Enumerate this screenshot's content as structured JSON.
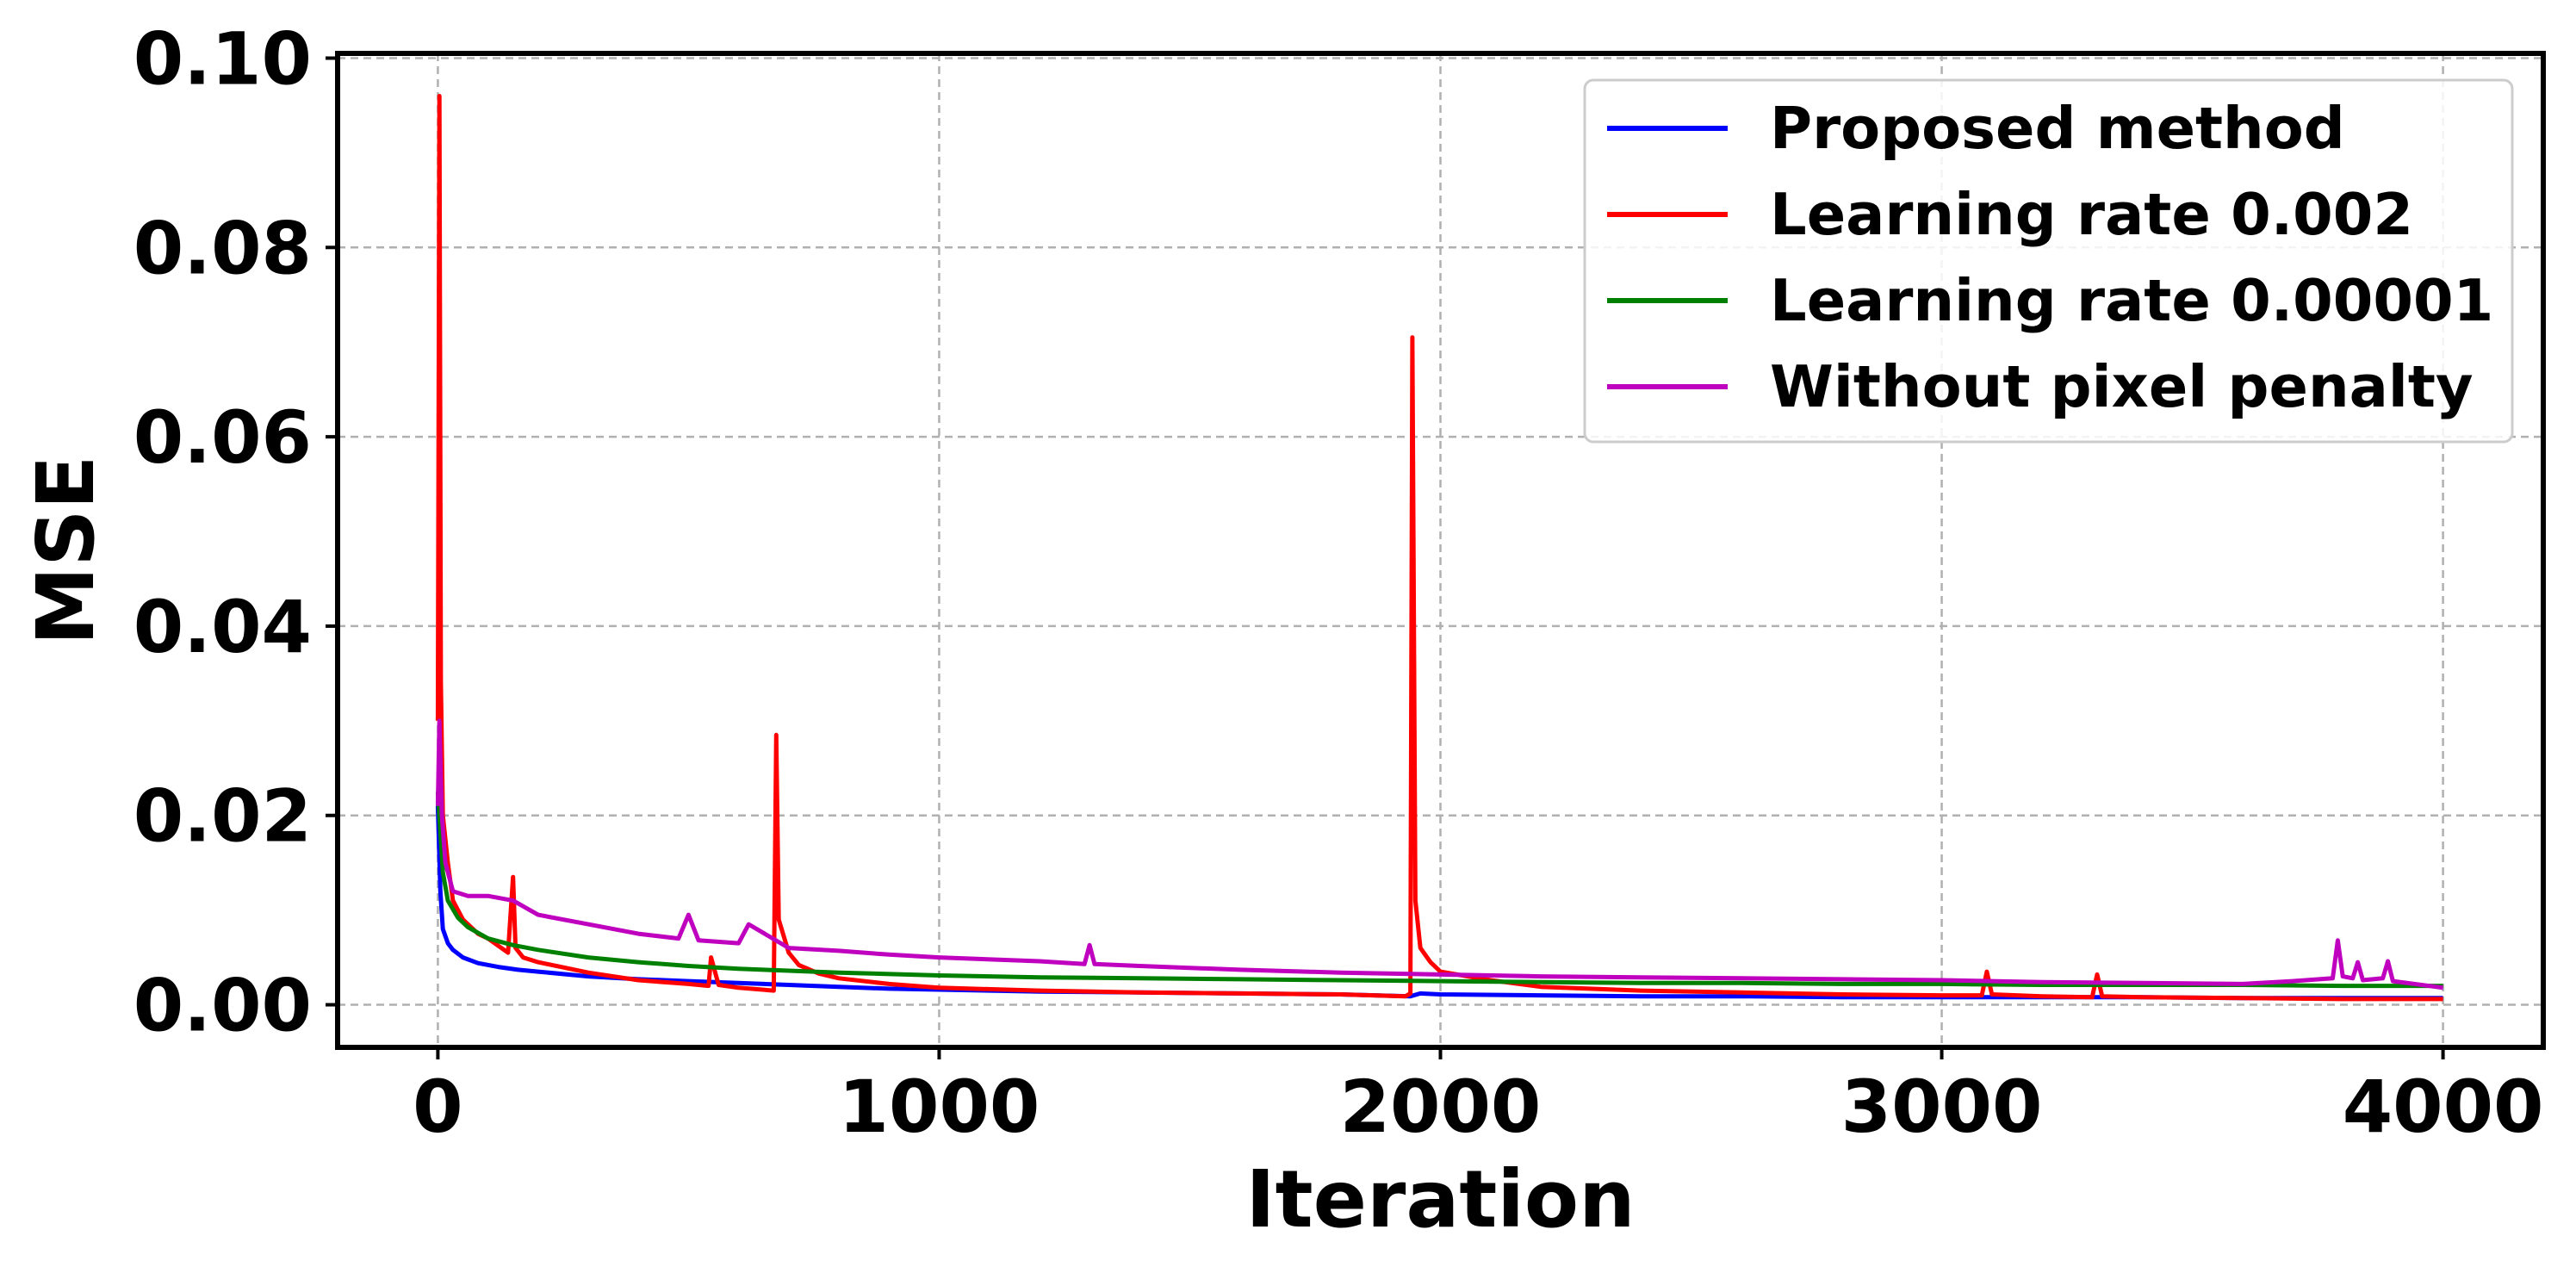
{
  "chart_data": {
    "type": "line",
    "title": "",
    "xlabel": "Iteration",
    "ylabel": "MSE",
    "xlim": [
      -200,
      4200
    ],
    "ylim": [
      -0.0045,
      0.1005
    ],
    "xticks": [
      0,
      1000,
      2000,
      3000,
      4000
    ],
    "xtick_labels": [
      "0",
      "1000",
      "2000",
      "3000",
      "4000"
    ],
    "yticks": [
      0.0,
      0.02,
      0.04,
      0.06,
      0.08,
      0.1
    ],
    "ytick_labels": [
      "0.00",
      "0.02",
      "0.04",
      "0.06",
      "0.08",
      "0.10"
    ],
    "grid": true,
    "legend_position": "top-right",
    "series": [
      {
        "name": "Proposed method",
        "color": "#0000ff",
        "x": [
          0,
          5,
          10,
          20,
          30,
          50,
          80,
          120,
          160,
          200,
          300,
          400,
          500,
          600,
          700,
          800,
          900,
          1000,
          1200,
          1400,
          1600,
          1800,
          1940,
          1960,
          2000,
          2200,
          2400,
          2600,
          2800,
          3000,
          3200,
          3400,
          3600,
          3800,
          4000
        ],
        "y": [
          0.021,
          0.012,
          0.008,
          0.0065,
          0.0058,
          0.005,
          0.0044,
          0.004,
          0.0037,
          0.0035,
          0.003,
          0.0027,
          0.0025,
          0.0023,
          0.0021,
          0.0019,
          0.0017,
          0.0016,
          0.0014,
          0.0013,
          0.0012,
          0.0011,
          0.0009,
          0.0012,
          0.0011,
          0.001,
          0.0009,
          0.0009,
          0.0008,
          0.0008,
          0.0008,
          0.0008,
          0.0007,
          0.0007,
          0.0007
        ]
      },
      {
        "name": "Learning rate 0.002",
        "color": "#ff0000",
        "x": [
          0,
          3,
          6,
          10,
          20,
          30,
          50,
          80,
          100,
          140,
          150,
          155,
          170,
          200,
          300,
          400,
          500,
          540,
          545,
          560,
          600,
          670,
          675,
          680,
          700,
          720,
          760,
          800,
          900,
          1000,
          1200,
          1400,
          1600,
          1800,
          1930,
          1940,
          1944,
          1950,
          1960,
          1980,
          2000,
          2100,
          2200,
          2400,
          2600,
          2800,
          3000,
          3080,
          3090,
          3100,
          3200,
          3300,
          3310,
          3320,
          3400,
          3600,
          3800,
          4000
        ],
        "y": [
          0.03,
          0.096,
          0.034,
          0.02,
          0.015,
          0.011,
          0.009,
          0.0075,
          0.007,
          0.0055,
          0.0135,
          0.006,
          0.005,
          0.0045,
          0.0034,
          0.0026,
          0.0022,
          0.002,
          0.005,
          0.0021,
          0.0018,
          0.0015,
          0.0285,
          0.009,
          0.0055,
          0.0042,
          0.0033,
          0.0028,
          0.0022,
          0.0018,
          0.0015,
          0.0013,
          0.0012,
          0.0011,
          0.0009,
          0.0012,
          0.0705,
          0.011,
          0.006,
          0.0045,
          0.0035,
          0.0026,
          0.0019,
          0.0015,
          0.0013,
          0.0011,
          0.001,
          0.001,
          0.0035,
          0.0011,
          0.0009,
          0.0008,
          0.0032,
          0.0009,
          0.0008,
          0.0007,
          0.0006,
          0.0006
        ]
      },
      {
        "name": "Learning rate 0.00001",
        "color": "#008000",
        "x": [
          0,
          10,
          20,
          40,
          60,
          100,
          150,
          200,
          300,
          400,
          500,
          600,
          700,
          800,
          1000,
          1200,
          1400,
          1600,
          1800,
          2000,
          2200,
          2400,
          2600,
          2800,
          3000,
          3200,
          3400,
          3600,
          3800,
          4000
        ],
        "y": [
          0.0225,
          0.014,
          0.011,
          0.0092,
          0.0082,
          0.007,
          0.0063,
          0.0058,
          0.005,
          0.0045,
          0.0041,
          0.0038,
          0.0036,
          0.0034,
          0.0031,
          0.0029,
          0.0028,
          0.0027,
          0.0026,
          0.0025,
          0.0024,
          0.0023,
          0.0023,
          0.0022,
          0.0022,
          0.0021,
          0.0021,
          0.0021,
          0.002,
          0.002
        ]
      },
      {
        "name": "Without pixel penalty",
        "color": "#bf00bf",
        "x": [
          0,
          3,
          8,
          15,
          30,
          60,
          100,
          150,
          200,
          300,
          400,
          480,
          500,
          520,
          600,
          620,
          700,
          800,
          900,
          1000,
          1200,
          1290,
          1300,
          1310,
          1400,
          1600,
          1800,
          2000,
          2200,
          2400,
          2600,
          2800,
          3000,
          3200,
          3400,
          3600,
          3700,
          3780,
          3790,
          3800,
          3820,
          3830,
          3840,
          3880,
          3890,
          3900,
          4000
        ],
        "y": [
          0.021,
          0.03,
          0.02,
          0.015,
          0.012,
          0.0115,
          0.0115,
          0.011,
          0.0095,
          0.0085,
          0.0075,
          0.007,
          0.0095,
          0.0068,
          0.0065,
          0.0085,
          0.006,
          0.0057,
          0.0053,
          0.005,
          0.0046,
          0.0043,
          0.0063,
          0.0043,
          0.0041,
          0.0037,
          0.0034,
          0.0032,
          0.003,
          0.0029,
          0.0028,
          0.0027,
          0.0026,
          0.0024,
          0.0023,
          0.0022,
          0.0025,
          0.0028,
          0.0068,
          0.003,
          0.0028,
          0.0045,
          0.0026,
          0.0028,
          0.0046,
          0.0025,
          0.0018
        ]
      }
    ]
  }
}
